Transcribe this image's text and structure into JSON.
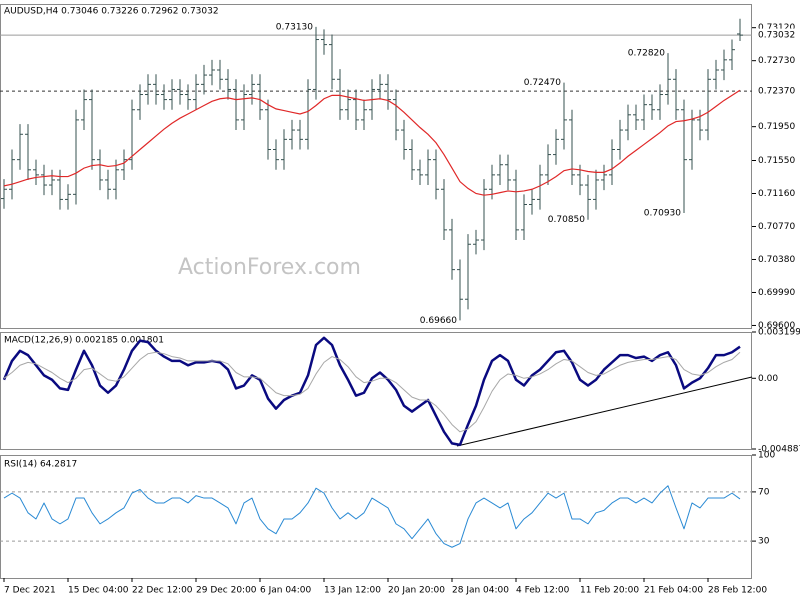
{
  "chart_data": [
    {
      "type": "ohlc",
      "title": "AUDUSD,H4 0.73046 0.73226 0.72962 0.73032",
      "color": "#35504f",
      "open": [
        0.711,
        0.7121,
        0.7156,
        0.7186,
        0.7144,
        0.7138,
        0.7126,
        0.7132,
        0.7109,
        0.7115,
        0.7203,
        0.7227,
        0.7156,
        0.7132,
        0.7121,
        0.7144,
        0.7156,
        0.7215,
        0.7233,
        0.7245,
        0.7233,
        0.7227,
        0.7239,
        0.7233,
        0.7227,
        0.7245,
        0.7256,
        0.7262,
        0.7251,
        0.7239,
        0.7203,
        0.7233,
        0.7245,
        0.7215,
        0.7168,
        0.7156,
        0.718,
        0.7191,
        0.718,
        0.7239,
        0.7298,
        0.7292,
        0.7251,
        0.7215,
        0.7227,
        0.7203,
        0.7215,
        0.7239,
        0.7245,
        0.7227,
        0.7191,
        0.7168,
        0.7144,
        0.7138,
        0.7156,
        0.7121,
        0.7073,
        0.7026,
        0.6991,
        0.7056,
        0.7061,
        0.7121,
        0.7138,
        0.715,
        0.7132,
        0.7073,
        0.7103,
        0.7109,
        0.7138,
        0.7162,
        0.718,
        0.7203,
        0.7138,
        0.7126,
        0.7109,
        0.7132,
        0.7138,
        0.7168,
        0.7191,
        0.7209,
        0.7203,
        0.7221,
        0.7215,
        0.7233,
        0.7251,
        0.7215,
        0.7156,
        0.7203,
        0.7191,
        0.7251,
        0.7262,
        0.7274,
        0.73046
      ],
      "high": [
        0.7133,
        0.7168,
        0.7198,
        0.7198,
        0.7156,
        0.715,
        0.7144,
        0.7144,
        0.7127,
        0.7215,
        0.7239,
        0.7239,
        0.7168,
        0.7144,
        0.7156,
        0.7168,
        0.7227,
        0.7245,
        0.7257,
        0.7257,
        0.7245,
        0.7251,
        0.7251,
        0.7245,
        0.7257,
        0.7268,
        0.7274,
        0.7274,
        0.7263,
        0.7251,
        0.7245,
        0.7257,
        0.7257,
        0.7227,
        0.718,
        0.7192,
        0.7203,
        0.7203,
        0.7251,
        0.7313,
        0.731,
        0.7304,
        0.7263,
        0.7239,
        0.7239,
        0.7227,
        0.7251,
        0.7257,
        0.7257,
        0.7239,
        0.7203,
        0.718,
        0.7156,
        0.7168,
        0.7168,
        0.7133,
        0.7086,
        0.7038,
        0.7068,
        0.7073,
        0.7133,
        0.715,
        0.7162,
        0.7162,
        0.7144,
        0.7115,
        0.7121,
        0.715,
        0.7174,
        0.7192,
        0.7247,
        0.7215,
        0.715,
        0.7138,
        0.7144,
        0.715,
        0.718,
        0.7203,
        0.7221,
        0.7221,
        0.7233,
        0.7233,
        0.7245,
        0.7282,
        0.7263,
        0.7227,
        0.7215,
        0.7215,
        0.7263,
        0.7274,
        0.7286,
        0.7298,
        0.73226
      ],
      "low": [
        0.7098,
        0.7109,
        0.7144,
        0.7132,
        0.7126,
        0.7114,
        0.7114,
        0.7097,
        0.7097,
        0.7103,
        0.7191,
        0.7144,
        0.712,
        0.7109,
        0.7109,
        0.7132,
        0.7144,
        0.7203,
        0.7221,
        0.7221,
        0.7215,
        0.7215,
        0.7221,
        0.7215,
        0.7215,
        0.7233,
        0.7244,
        0.7239,
        0.7227,
        0.7191,
        0.7191,
        0.7221,
        0.7203,
        0.7156,
        0.7144,
        0.7144,
        0.7168,
        0.7168,
        0.7168,
        0.7227,
        0.728,
        0.7239,
        0.7203,
        0.7203,
        0.7191,
        0.7191,
        0.7203,
        0.7227,
        0.7215,
        0.7179,
        0.7156,
        0.7132,
        0.7126,
        0.7126,
        0.7109,
        0.7061,
        0.7014,
        0.6966,
        0.6979,
        0.7044,
        0.7049,
        0.7109,
        0.7126,
        0.712,
        0.7061,
        0.7061,
        0.7091,
        0.7097,
        0.7126,
        0.715,
        0.7168,
        0.7126,
        0.7114,
        0.7085,
        0.7097,
        0.712,
        0.7126,
        0.7156,
        0.7179,
        0.7191,
        0.7191,
        0.7203,
        0.7203,
        0.7221,
        0.7203,
        0.7093,
        0.7144,
        0.7179,
        0.7179,
        0.7239,
        0.725,
        0.7262,
        0.72962
      ],
      "close": [
        0.7121,
        0.7156,
        0.7186,
        0.7144,
        0.7138,
        0.7126,
        0.7132,
        0.7109,
        0.7115,
        0.7203,
        0.7227,
        0.7156,
        0.7132,
        0.7121,
        0.7144,
        0.7156,
        0.7215,
        0.7233,
        0.7245,
        0.7233,
        0.7227,
        0.7239,
        0.7233,
        0.7227,
        0.7245,
        0.7256,
        0.7262,
        0.7251,
        0.7239,
        0.7203,
        0.7233,
        0.7245,
        0.7215,
        0.7168,
        0.7156,
        0.718,
        0.7191,
        0.718,
        0.7239,
        0.7298,
        0.7292,
        0.7251,
        0.7215,
        0.7227,
        0.7203,
        0.7215,
        0.7239,
        0.7245,
        0.7227,
        0.7191,
        0.7168,
        0.7144,
        0.7138,
        0.7156,
        0.7121,
        0.7073,
        0.7026,
        0.6991,
        0.7056,
        0.7061,
        0.7121,
        0.7138,
        0.715,
        0.7132,
        0.7073,
        0.7103,
        0.7109,
        0.7138,
        0.7162,
        0.718,
        0.7203,
        0.7138,
        0.7126,
        0.7109,
        0.7132,
        0.7138,
        0.7168,
        0.7191,
        0.7209,
        0.7203,
        0.7221,
        0.7215,
        0.7233,
        0.7251,
        0.7215,
        0.7156,
        0.7203,
        0.7191,
        0.7251,
        0.7262,
        0.7274,
        0.7286,
        0.73032
      ],
      "overlay": {
        "color": "#e02828",
        "values": [
          0.7125,
          0.7127,
          0.713,
          0.7133,
          0.7135,
          0.7136,
          0.7137,
          0.7136,
          0.7136,
          0.714,
          0.7146,
          0.7149,
          0.715,
          0.7148,
          0.7149,
          0.7152,
          0.716,
          0.7168,
          0.7176,
          0.7184,
          0.7192,
          0.7199,
          0.7205,
          0.721,
          0.7215,
          0.722,
          0.7225,
          0.7228,
          0.7229,
          0.7227,
          0.7228,
          0.7229,
          0.7227,
          0.7221,
          0.7216,
          0.7214,
          0.7212,
          0.721,
          0.7213,
          0.722,
          0.7228,
          0.7232,
          0.7232,
          0.723,
          0.7228,
          0.7226,
          0.7227,
          0.7228,
          0.7226,
          0.722,
          0.7212,
          0.7203,
          0.7194,
          0.7186,
          0.7176,
          0.7162,
          0.7146,
          0.713,
          0.7122,
          0.7116,
          0.7114,
          0.7115,
          0.7117,
          0.7119,
          0.7118,
          0.7119,
          0.7121,
          0.7125,
          0.713,
          0.7136,
          0.7143,
          0.7145,
          0.7144,
          0.7142,
          0.7141,
          0.7141,
          0.7145,
          0.7152,
          0.716,
          0.7167,
          0.7174,
          0.7181,
          0.7188,
          0.7196,
          0.7201,
          0.7202,
          0.7204,
          0.7207,
          0.7212,
          0.7219,
          0.7226,
          0.7232,
          0.7238
        ]
      },
      "ylim": [
        0.6957,
        0.734
      ],
      "yticks": [
        {
          "value": 0.7312,
          "label": "0.73120"
        },
        {
          "value": 0.7273,
          "label": "0.72730"
        },
        {
          "value": 0.7195,
          "label": "0.71950"
        },
        {
          "value": 0.7155,
          "label": "0.71550"
        },
        {
          "value": 0.7116,
          "label": "0.71160"
        },
        {
          "value": 0.7077,
          "label": "0.70770"
        },
        {
          "value": 0.7038,
          "label": "0.70380"
        },
        {
          "value": 0.6999,
          "label": "0.69990"
        },
        {
          "value": 0.696,
          "label": "0.69600"
        }
      ],
      "price_line": {
        "value": 0.73032,
        "label": "0.73032"
      },
      "level": {
        "value": 0.7237,
        "label": "0.72370"
      },
      "annotations": [
        {
          "value": 0.7313,
          "label": "0.73130"
        },
        {
          "value": 0.6966,
          "label": "0.69660"
        },
        {
          "value": 0.7247,
          "label": "0.72470"
        },
        {
          "value": 0.7085,
          "label": "0.70850"
        },
        {
          "value": 0.7282,
          "label": "0.72820"
        },
        {
          "value": 0.7093,
          "label": "0.70930"
        }
      ],
      "watermark": "ActionForex.com"
    },
    {
      "type": "line",
      "title": "MACD(12,26,9) 0.002185 0.001801",
      "series": [
        {
          "color": "#0a0a80",
          "values": [
            -0.0001,
            0.0012,
            0.0019,
            0.0016,
            0.0009,
            0.0002,
            -0.0001,
            -0.0007,
            -0.0008,
            0.0006,
            0.0019,
            0.0009,
            -0.0005,
            -0.001,
            -0.0005,
            0.0006,
            0.0019,
            0.0026,
            0.0025,
            0.0019,
            0.0015,
            0.0012,
            0.0012,
            0.0009,
            0.0011,
            0.0011,
            0.0012,
            0.0011,
            0.0006,
            -0.0007,
            -0.0005,
            0.0002,
            -0.0001,
            -0.0014,
            -0.0021,
            -0.0015,
            -0.0012,
            -0.001,
            0.0002,
            0.0023,
            0.0028,
            0.0023,
            0.0009,
            -0.0001,
            -0.0012,
            -0.001,
            0,
            0.0004,
            -0.0001,
            -0.0008,
            -0.0019,
            -0.0023,
            -0.0019,
            -0.0015,
            -0.0026,
            -0.0037,
            -0.0045,
            -0.0046,
            -0.0032,
            -0.0019,
            -0.0001,
            0.0012,
            0.0016,
            0.0012,
            -0.0001,
            -0.0005,
            0.0002,
            0.0006,
            0.0012,
            0.0018,
            0.0019,
            0.0011,
            -0.0001,
            -0.0005,
            -0.0001,
            0.0006,
            0.0011,
            0.0016,
            0.0016,
            0.0014,
            0.0015,
            0.0012,
            0.0016,
            0.0018,
            0.0009,
            -0.0007,
            -0.0003,
            0,
            0.0007,
            0.0016,
            0.0016,
            0.0018,
            0.002185
          ]
        },
        {
          "color": "#a8a8a8",
          "values": [
            0,
            0.0004,
            0.0009,
            0.0011,
            0.001,
            0.0007,
            0.0004,
            0,
            -0.0003,
            0,
            0.0006,
            0.0007,
            0.0003,
            -0.0001,
            -0.0002,
            0.0001,
            0.0007,
            0.0013,
            0.0017,
            0.0018,
            0.0017,
            0.0015,
            0.0014,
            0.0012,
            0.0012,
            0.0012,
            0.0012,
            0.0012,
            0.001,
            0.0004,
            0.0001,
            0.0001,
            0,
            -0.0005,
            -0.001,
            -0.0012,
            -0.0012,
            -0.0011,
            -0.0007,
            0.0003,
            0.0011,
            0.0015,
            0.0013,
            0.0008,
            0.0001,
            -0.0003,
            -0.0002,
            0,
            0,
            -0.0003,
            -0.0008,
            -0.0013,
            -0.0015,
            -0.0015,
            -0.0019,
            -0.0025,
            -0.0032,
            -0.0037,
            -0.0035,
            -0.003,
            -0.002,
            -0.0009,
            -0.0001,
            0.0003,
            0.0002,
            0,
            0.0001,
            0.0003,
            0.0006,
            0.001,
            0.0013,
            0.0012,
            0.0008,
            0.0004,
            0.0002,
            0.0003,
            0.0006,
            0.0009,
            0.0011,
            0.0012,
            0.0013,
            0.0013,
            0.0014,
            0.0015,
            0.0013,
            0.0006,
            0.0003,
            0.0002,
            0.0004,
            0.0008,
            0.0011,
            0.0013,
            0.001801
          ]
        }
      ],
      "ylim": [
        -0.004887,
        0.003199
      ],
      "yticks": [
        0.003199,
        {
          "value": 0,
          "label": "0.00"
        },
        -0.004887
      ]
    },
    {
      "type": "line",
      "title": "RSI(14) 64.2817",
      "grid": true,
      "series": [
        {
          "color": "#2a8ad4",
          "values": [
            65,
            69,
            65,
            53,
            48,
            61,
            48,
            44,
            48,
            65,
            65,
            53,
            44,
            48,
            53,
            57,
            69,
            72,
            65,
            61,
            61,
            65,
            65,
            61,
            67,
            65,
            65,
            61,
            57,
            44,
            61,
            65,
            48,
            40,
            36,
            48,
            48,
            53,
            61,
            73,
            69,
            57,
            48,
            53,
            48,
            53,
            65,
            61,
            57,
            44,
            40,
            32,
            40,
            48,
            36,
            28,
            25,
            28,
            48,
            61,
            65,
            61,
            57,
            61,
            40,
            48,
            53,
            61,
            69,
            65,
            69,
            48,
            48,
            44,
            53,
            55,
            61,
            65,
            65,
            61,
            65,
            61,
            69,
            75,
            57,
            40,
            61,
            57,
            65,
            65,
            65,
            69,
            64.2817
          ]
        }
      ],
      "ylim": [
        0,
        100
      ],
      "yticks": [
        100,
        70,
        30
      ],
      "categories": [
        "7 Dec 2021",
        null,
        null,
        null,
        null,
        null,
        null,
        null,
        "15 Dec 04:00",
        null,
        null,
        null,
        null,
        null,
        null,
        null,
        "22 Dec 12:00",
        null,
        null,
        null,
        null,
        null,
        null,
        null,
        "29 Dec 20:00",
        null,
        null,
        null,
        null,
        null,
        null,
        null,
        "6 Jan 04:00",
        null,
        null,
        null,
        null,
        null,
        null,
        null,
        "13 Jan 12:00",
        null,
        null,
        null,
        null,
        null,
        null,
        null,
        "20 Jan 20:00",
        null,
        null,
        null,
        null,
        null,
        null,
        null,
        "28 Jan 04:00",
        null,
        null,
        null,
        null,
        null,
        null,
        null,
        "4 Feb 12:00",
        null,
        null,
        null,
        null,
        null,
        null,
        null,
        "11 Feb 20:00",
        null,
        null,
        null,
        null,
        null,
        null,
        null,
        "21 Feb 04:00",
        null,
        null,
        null,
        null,
        null,
        null,
        null,
        "28 Feb 12:00",
        null,
        null,
        null,
        null
      ]
    }
  ]
}
